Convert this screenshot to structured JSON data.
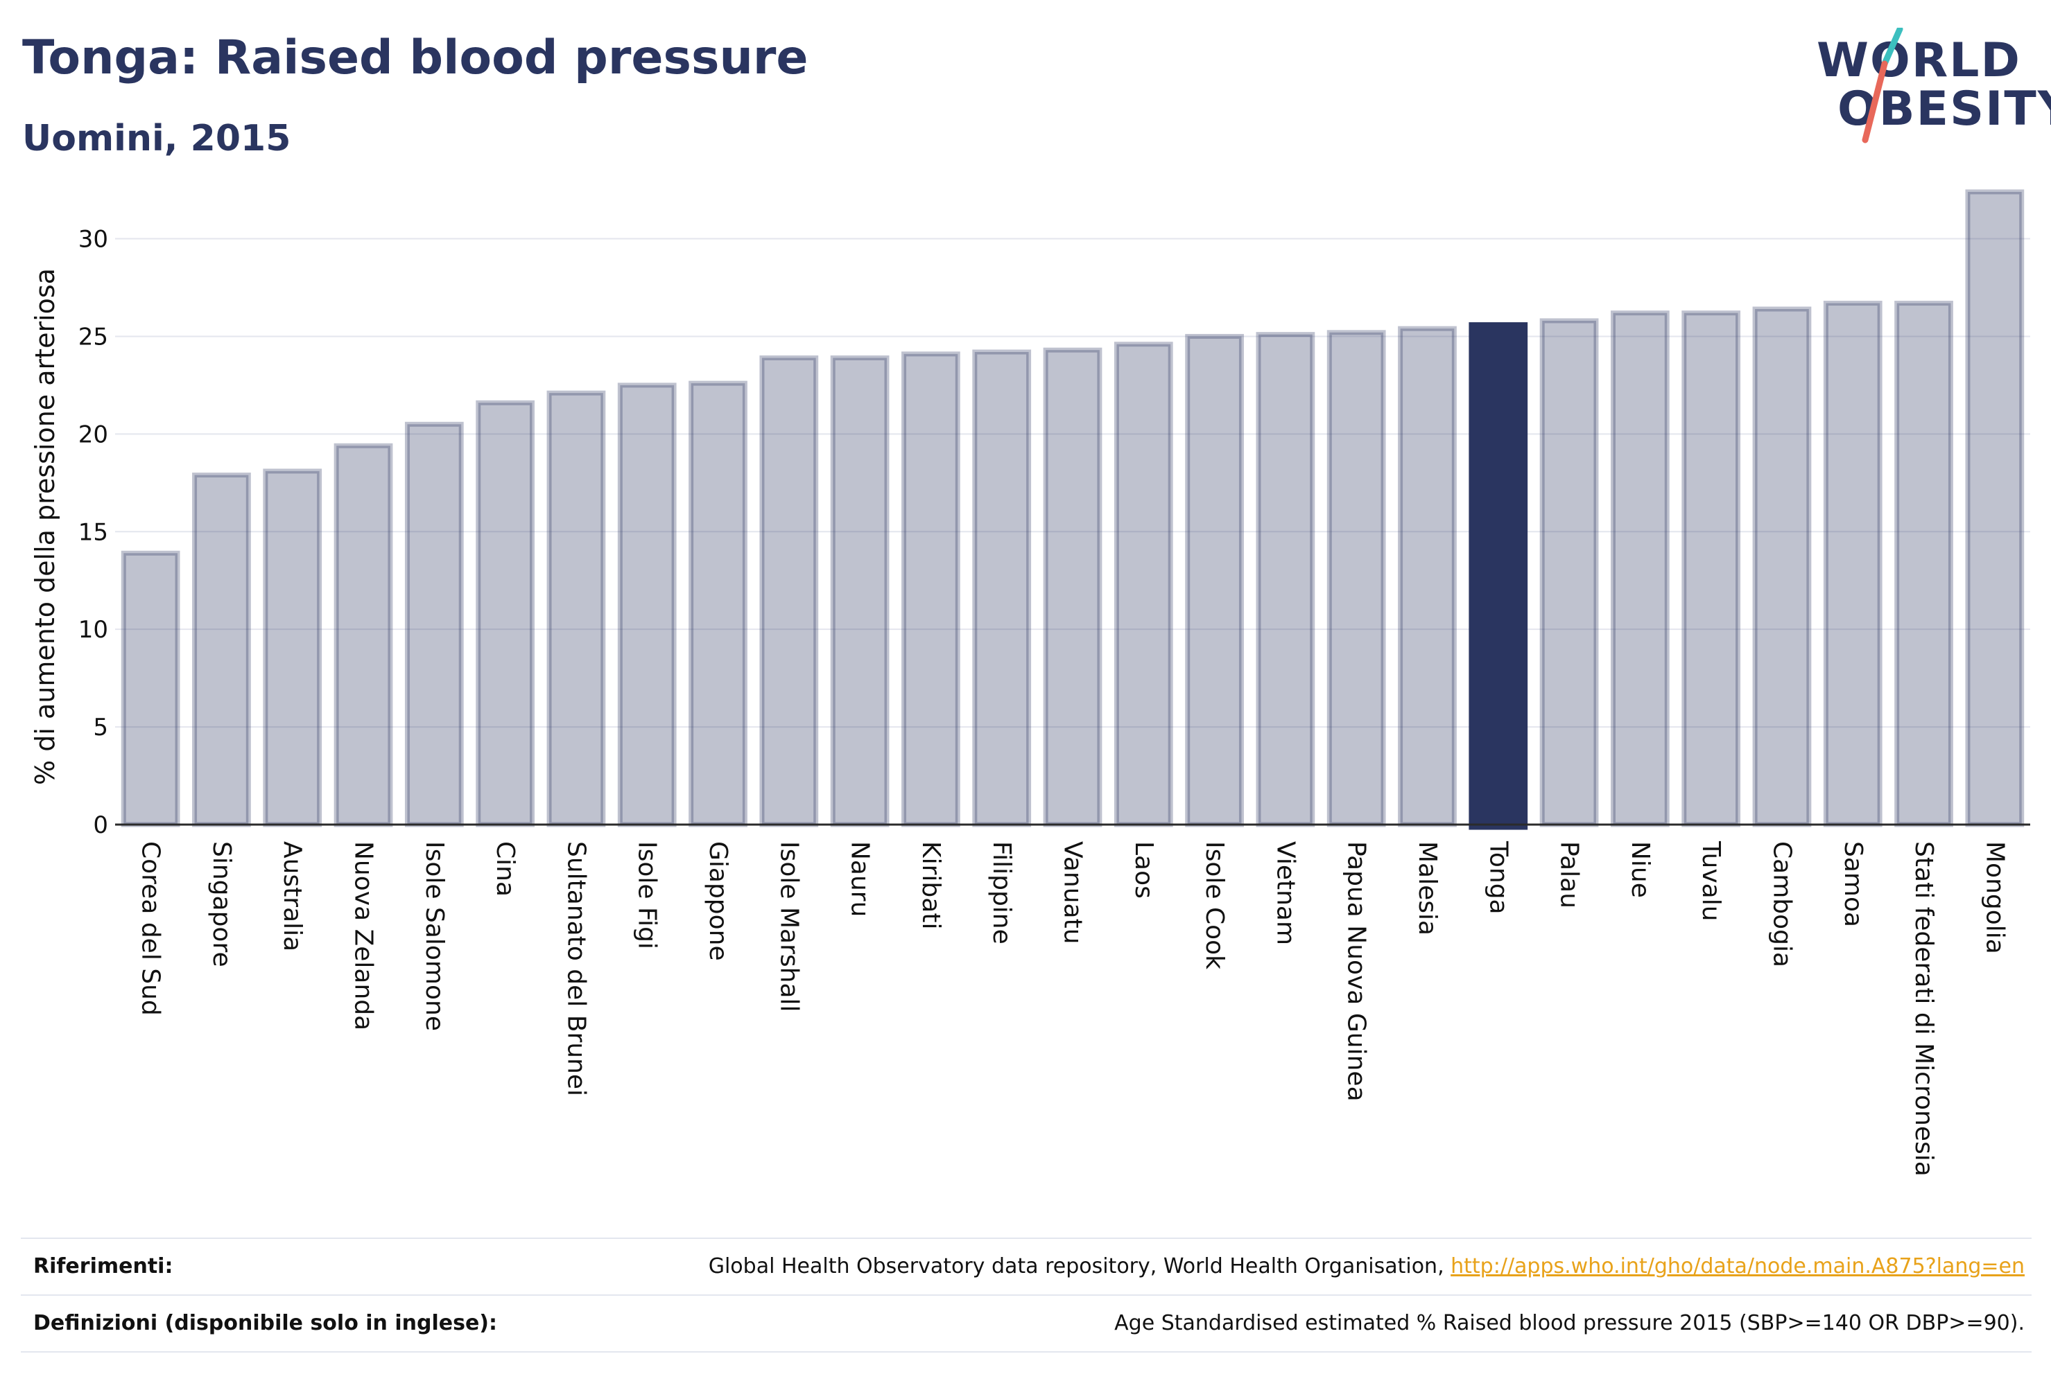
{
  "header": {
    "title": "Tonga: Raised blood pressure",
    "subtitle": "Uomini, 2015"
  },
  "logo": {
    "line1": "WORLD",
    "line2": "OBESITY",
    "slash_colors": [
      "#3cbfbf",
      "#e8685a"
    ]
  },
  "colors": {
    "bar": "#2a3560",
    "bar_fill_opacity": 0.3,
    "highlight": "#2a3560",
    "grid": "#e4e6ee",
    "link": "#e8a21a"
  },
  "chart_data": {
    "type": "bar",
    "ylabel": "% di aumento della pressione arteriosa",
    "xlabel": "",
    "ylim": [
      0,
      33
    ],
    "yticks": [
      0,
      5,
      10,
      15,
      20,
      25,
      30
    ],
    "grid": true,
    "highlight_category": "Tonga",
    "categories": [
      "Corea del Sud",
      "Singapore",
      "Australia",
      "Nuova Zelanda",
      "Isole Salomone",
      "Cina",
      "Sultanato del Brunei",
      "Isole Figi",
      "Giappone",
      "Isole Marshall",
      "Nauru",
      "Kiribati",
      "Filippine",
      "Vanuatu",
      "Laos",
      "Isole Cook",
      "Vietnam",
      "Papua Nuova Guinea",
      "Malesia",
      "Tonga",
      "Palau",
      "Niue",
      "Tuvalu",
      "Cambogia",
      "Samoa",
      "Stati federati di Micronesia",
      "Mongolia"
    ],
    "values": [
      13.9,
      17.9,
      18.1,
      19.4,
      20.5,
      21.6,
      22.1,
      22.5,
      22.6,
      23.9,
      23.9,
      24.1,
      24.2,
      24.3,
      24.6,
      25.0,
      25.1,
      25.2,
      25.4,
      25.6,
      25.8,
      26.2,
      26.2,
      26.4,
      26.7,
      26.7,
      32.4
    ]
  },
  "footer": {
    "references_label": "Riferimenti:",
    "references_text": "Global Health Observatory data repository, World Health Organisation, ",
    "references_link": "http://apps.who.int/gho/data/node.main.A875?lang=en",
    "definitions_label": "Definizioni (disponibile solo in inglese):",
    "definitions_text": "Age Standardised estimated % Raised blood pressure 2015 (SBP>=140 OR DBP>=90)."
  }
}
